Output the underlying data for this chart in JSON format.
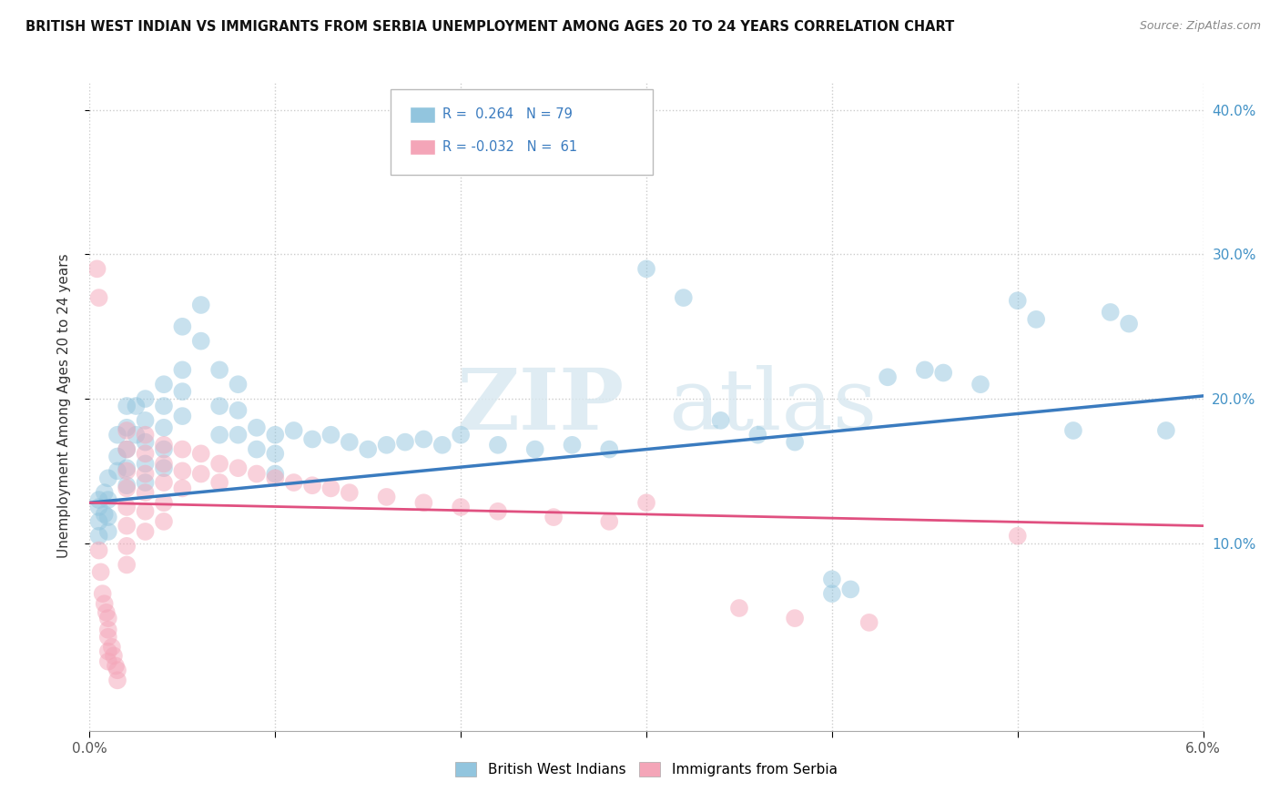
{
  "title": "BRITISH WEST INDIAN VS IMMIGRANTS FROM SERBIA UNEMPLOYMENT AMONG AGES 20 TO 24 YEARS CORRELATION CHART",
  "source": "Source: ZipAtlas.com",
  "ylabel": "Unemployment Among Ages 20 to 24 years",
  "xmin": 0.0,
  "xmax": 0.06,
  "ymin": -0.03,
  "ymax": 0.42,
  "yticks": [
    0.1,
    0.2,
    0.3,
    0.4
  ],
  "xticks": [
    0.0,
    0.01,
    0.02,
    0.03,
    0.04,
    0.05,
    0.06
  ],
  "R_blue": 0.264,
  "N_blue": 79,
  "R_pink": -0.032,
  "N_pink": 61,
  "blue_color": "#92c5de",
  "pink_color": "#f4a5b8",
  "trend_blue": "#3a7bbf",
  "trend_pink": "#e05080",
  "watermark_zip": "ZIP",
  "watermark_atlas": "atlas",
  "legend_label_blue": "British West Indians",
  "legend_label_pink": "Immigrants from Serbia",
  "blue_scatter": [
    [
      0.0005,
      0.13
    ],
    [
      0.0005,
      0.115
    ],
    [
      0.0005,
      0.125
    ],
    [
      0.0005,
      0.105
    ],
    [
      0.0008,
      0.135
    ],
    [
      0.0008,
      0.12
    ],
    [
      0.001,
      0.145
    ],
    [
      0.001,
      0.13
    ],
    [
      0.001,
      0.118
    ],
    [
      0.001,
      0.108
    ],
    [
      0.0015,
      0.175
    ],
    [
      0.0015,
      0.16
    ],
    [
      0.0015,
      0.15
    ],
    [
      0.002,
      0.195
    ],
    [
      0.002,
      0.18
    ],
    [
      0.002,
      0.165
    ],
    [
      0.002,
      0.152
    ],
    [
      0.002,
      0.14
    ],
    [
      0.0025,
      0.195
    ],
    [
      0.0025,
      0.175
    ],
    [
      0.003,
      0.2
    ],
    [
      0.003,
      0.185
    ],
    [
      0.003,
      0.17
    ],
    [
      0.003,
      0.155
    ],
    [
      0.003,
      0.142
    ],
    [
      0.004,
      0.21
    ],
    [
      0.004,
      0.195
    ],
    [
      0.004,
      0.18
    ],
    [
      0.004,
      0.165
    ],
    [
      0.004,
      0.152
    ],
    [
      0.005,
      0.25
    ],
    [
      0.005,
      0.22
    ],
    [
      0.005,
      0.205
    ],
    [
      0.005,
      0.188
    ],
    [
      0.006,
      0.265
    ],
    [
      0.006,
      0.24
    ],
    [
      0.007,
      0.22
    ],
    [
      0.007,
      0.195
    ],
    [
      0.007,
      0.175
    ],
    [
      0.008,
      0.21
    ],
    [
      0.008,
      0.192
    ],
    [
      0.008,
      0.175
    ],
    [
      0.009,
      0.18
    ],
    [
      0.009,
      0.165
    ],
    [
      0.01,
      0.175
    ],
    [
      0.01,
      0.162
    ],
    [
      0.01,
      0.148
    ],
    [
      0.011,
      0.178
    ],
    [
      0.012,
      0.172
    ],
    [
      0.013,
      0.175
    ],
    [
      0.014,
      0.17
    ],
    [
      0.015,
      0.165
    ],
    [
      0.016,
      0.168
    ],
    [
      0.017,
      0.17
    ],
    [
      0.018,
      0.172
    ],
    [
      0.019,
      0.168
    ],
    [
      0.02,
      0.175
    ],
    [
      0.022,
      0.168
    ],
    [
      0.024,
      0.165
    ],
    [
      0.026,
      0.168
    ],
    [
      0.028,
      0.165
    ],
    [
      0.03,
      0.29
    ],
    [
      0.032,
      0.27
    ],
    [
      0.034,
      0.185
    ],
    [
      0.036,
      0.175
    ],
    [
      0.038,
      0.17
    ],
    [
      0.04,
      0.075
    ],
    [
      0.04,
      0.065
    ],
    [
      0.041,
      0.068
    ],
    [
      0.043,
      0.215
    ],
    [
      0.045,
      0.22
    ],
    [
      0.046,
      0.218
    ],
    [
      0.048,
      0.21
    ],
    [
      0.05,
      0.268
    ],
    [
      0.051,
      0.255
    ],
    [
      0.053,
      0.178
    ],
    [
      0.055,
      0.26
    ],
    [
      0.056,
      0.252
    ],
    [
      0.058,
      0.178
    ]
  ],
  "pink_scatter": [
    [
      0.0004,
      0.29
    ],
    [
      0.0005,
      0.27
    ],
    [
      0.0005,
      0.095
    ],
    [
      0.0006,
      0.08
    ],
    [
      0.0007,
      0.065
    ],
    [
      0.0008,
      0.058
    ],
    [
      0.0009,
      0.052
    ],
    [
      0.001,
      0.048
    ],
    [
      0.001,
      0.04
    ],
    [
      0.001,
      0.035
    ],
    [
      0.001,
      0.025
    ],
    [
      0.001,
      0.018
    ],
    [
      0.0012,
      0.028
    ],
    [
      0.0013,
      0.022
    ],
    [
      0.0014,
      0.015
    ],
    [
      0.0015,
      0.012
    ],
    [
      0.0015,
      0.005
    ],
    [
      0.002,
      0.178
    ],
    [
      0.002,
      0.165
    ],
    [
      0.002,
      0.15
    ],
    [
      0.002,
      0.138
    ],
    [
      0.002,
      0.125
    ],
    [
      0.002,
      0.112
    ],
    [
      0.002,
      0.098
    ],
    [
      0.002,
      0.085
    ],
    [
      0.003,
      0.175
    ],
    [
      0.003,
      0.162
    ],
    [
      0.003,
      0.148
    ],
    [
      0.003,
      0.135
    ],
    [
      0.003,
      0.122
    ],
    [
      0.003,
      0.108
    ],
    [
      0.004,
      0.168
    ],
    [
      0.004,
      0.155
    ],
    [
      0.004,
      0.142
    ],
    [
      0.004,
      0.128
    ],
    [
      0.004,
      0.115
    ],
    [
      0.005,
      0.165
    ],
    [
      0.005,
      0.15
    ],
    [
      0.005,
      0.138
    ],
    [
      0.006,
      0.162
    ],
    [
      0.006,
      0.148
    ],
    [
      0.007,
      0.155
    ],
    [
      0.007,
      0.142
    ],
    [
      0.008,
      0.152
    ],
    [
      0.009,
      0.148
    ],
    [
      0.01,
      0.145
    ],
    [
      0.011,
      0.142
    ],
    [
      0.012,
      0.14
    ],
    [
      0.013,
      0.138
    ],
    [
      0.014,
      0.135
    ],
    [
      0.016,
      0.132
    ],
    [
      0.018,
      0.128
    ],
    [
      0.02,
      0.125
    ],
    [
      0.022,
      0.122
    ],
    [
      0.025,
      0.118
    ],
    [
      0.028,
      0.115
    ],
    [
      0.03,
      0.128
    ],
    [
      0.035,
      0.055
    ],
    [
      0.038,
      0.048
    ],
    [
      0.042,
      0.045
    ],
    [
      0.05,
      0.105
    ]
  ],
  "trend_blue_y0": 0.128,
  "trend_blue_y1": 0.202,
  "trend_pink_y0": 0.128,
  "trend_pink_y1": 0.112
}
